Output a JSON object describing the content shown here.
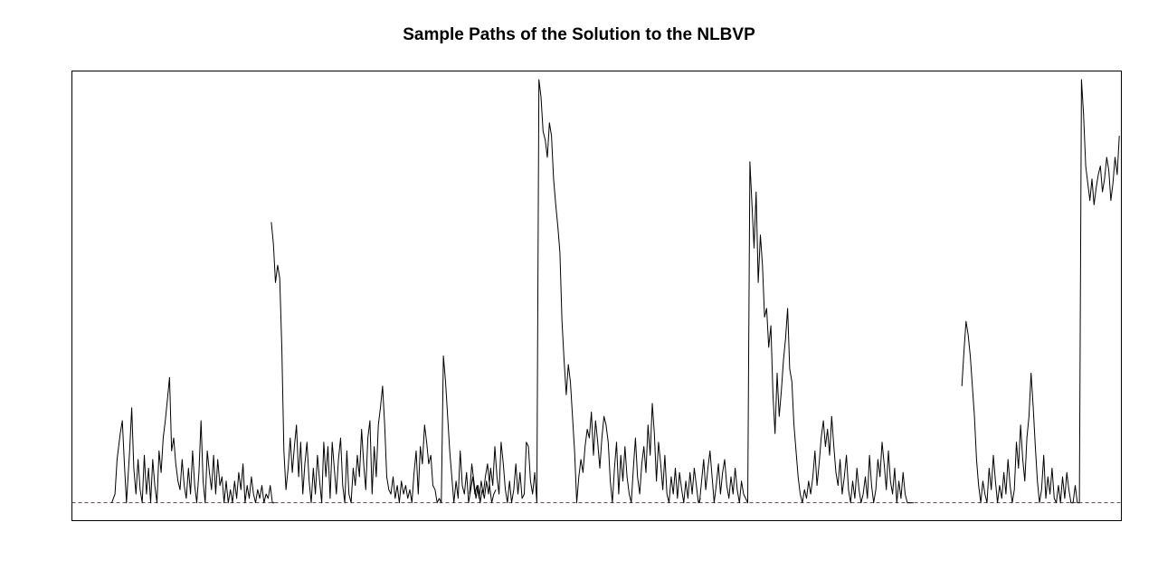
{
  "chart_data": {
    "type": "line",
    "title": "Sample Paths of the Solution to the NLBVP",
    "xlabel": "",
    "ylabel": "",
    "xlim": [
      0,
      1
    ],
    "ylim": [
      -0.0416,
      1.0
    ],
    "grid": false,
    "reference_line": {
      "y": 0,
      "color": "#b22222",
      "style": "dashed"
    },
    "line_color": "#000000",
    "series": [
      {
        "x": [
          0.038,
          0.041,
          0.043,
          0.046,
          0.048,
          0.05,
          0.052,
          0.055,
          0.057,
          0.059,
          0.061,
          0.063,
          0.065,
          0.067,
          0.069,
          0.071,
          0.073,
          0.075,
          0.077,
          0.079,
          0.081,
          0.083,
          0.085,
          0.087,
          0.089,
          0.091,
          0.093,
          0.095,
          0.097,
          0.099,
          0.101,
          0.103,
          0.105,
          0.107,
          0.109,
          0.111,
          0.113,
          0.115,
          0.117,
          0.119,
          0.121,
          0.123,
          0.125,
          0.127,
          0.129,
          0.131,
          0.133,
          0.135,
          0.137,
          0.139,
          0.141,
          0.143,
          0.145,
          0.147,
          0.149,
          0.151,
          0.153,
          0.155,
          0.157,
          0.159,
          0.161,
          0.163,
          0.165,
          0.167,
          0.169,
          0.171,
          0.173,
          0.175,
          0.177,
          0.179,
          0.181,
          0.183,
          0.185,
          0.187,
          0.189,
          0.191,
          0.193
        ],
        "y": [
          0.0,
          0.02,
          0.1,
          0.16,
          0.19,
          0.09,
          0.0,
          0.12,
          0.22,
          0.08,
          0.02,
          0.1,
          0.03,
          0.0,
          0.11,
          0.02,
          0.08,
          0.0,
          0.1,
          0.04,
          0.0,
          0.12,
          0.07,
          0.15,
          0.19,
          0.24,
          0.29,
          0.12,
          0.15,
          0.09,
          0.05,
          0.03,
          0.1,
          0.04,
          0.01,
          0.08,
          0.02,
          0.12,
          0.04,
          0.0,
          0.07,
          0.19,
          0.05,
          0.0,
          0.12,
          0.07,
          0.03,
          0.11,
          0.02,
          0.1,
          0.04,
          0.06,
          0.0,
          0.05,
          0.0,
          0.03,
          0.0,
          0.05,
          0.01,
          0.07,
          0.03,
          0.09,
          0.0,
          0.04,
          0.01,
          0.06,
          0.02,
          0.0,
          0.03,
          0.01,
          0.04,
          0.0,
          0.02,
          0.01,
          0.04,
          0.0,
          0.0
        ]
      },
      {
        "x": [
          0.19,
          0.192,
          0.194,
          0.196,
          0.198,
          0.2,
          0.202,
          0.204,
          0.206,
          0.208,
          0.21,
          0.212,
          0.214,
          0.216,
          0.218,
          0.22,
          0.222,
          0.224,
          0.226,
          0.228,
          0.23,
          0.232,
          0.234,
          0.236,
          0.238,
          0.24,
          0.242,
          0.244,
          0.246,
          0.248,
          0.25,
          0.252,
          0.254,
          0.256,
          0.258,
          0.26,
          0.262,
          0.264,
          0.266,
          0.268,
          0.27,
          0.272,
          0.274,
          0.276,
          0.278,
          0.28,
          0.282,
          0.284,
          0.286,
          0.288,
          0.29,
          0.292,
          0.294,
          0.296,
          0.298,
          0.3,
          0.302,
          0.304,
          0.306,
          0.308,
          0.31,
          0.312,
          0.314,
          0.316,
          0.318,
          0.32,
          0.322,
          0.324,
          0.326,
          0.328,
          0.33,
          0.332,
          0.334,
          0.336,
          0.338,
          0.34,
          0.342,
          0.344,
          0.346,
          0.348,
          0.35,
          0.352,
          0.354,
          0.356,
          0.358,
          0.36,
          0.362,
          0.364,
          0.366,
          0.368,
          0.37,
          0.372,
          0.374,
          0.376,
          0.378,
          0.38,
          0.382,
          0.384,
          0.386,
          0.388,
          0.39,
          0.392,
          0.394,
          0.396,
          0.398,
          0.4,
          0.402,
          0.404
        ],
        "y": [
          0.65,
          0.6,
          0.51,
          0.55,
          0.52,
          0.36,
          0.12,
          0.03,
          0.08,
          0.15,
          0.07,
          0.13,
          0.18,
          0.06,
          0.14,
          0.02,
          0.09,
          0.14,
          0.05,
          0.0,
          0.08,
          0.02,
          0.11,
          0.05,
          0.0,
          0.14,
          0.06,
          0.13,
          0.01,
          0.14,
          0.08,
          0.02,
          0.1,
          0.15,
          0.04,
          0.0,
          0.12,
          0.02,
          0.0,
          0.08,
          0.04,
          0.11,
          0.06,
          0.17,
          0.09,
          0.03,
          0.15,
          0.19,
          0.02,
          0.13,
          0.06,
          0.18,
          0.22,
          0.27,
          0.18,
          0.06,
          0.03,
          0.02,
          0.06,
          0.01,
          0.04,
          0.0,
          0.05,
          0.02,
          0.04,
          0.01,
          0.03,
          0.0,
          0.07,
          0.12,
          0.02,
          0.13,
          0.09,
          0.18,
          0.14,
          0.09,
          0.11,
          0.04,
          0.03,
          0.0,
          0.01,
          0.0,
          0.34,
          0.28,
          0.2,
          0.12,
          0.06,
          0.0,
          0.05,
          0.01,
          0.12,
          0.04,
          0.02,
          0.07,
          0.0,
          0.03,
          0.06,
          0.02,
          0.04,
          0.01,
          0.05,
          0.02,
          0.06,
          0.09,
          0.04,
          0.0,
          0.02,
          0.03
        ]
      },
      {
        "x": [
          0.379,
          0.381,
          0.383,
          0.385,
          0.387,
          0.389,
          0.391,
          0.393,
          0.395,
          0.397,
          0.399,
          0.401,
          0.403,
          0.405,
          0.407,
          0.409,
          0.411,
          0.413,
          0.415,
          0.417,
          0.419,
          0.421,
          0.423,
          0.425,
          0.427,
          0.429,
          0.431,
          0.433,
          0.435,
          0.437,
          0.439,
          0.441,
          0.443,
          0.445,
          0.447,
          0.449,
          0.451,
          0.453,
          0.455,
          0.457,
          0.459,
          0.461,
          0.463,
          0.465,
          0.467,
          0.469,
          0.471,
          0.473,
          0.475,
          0.477,
          0.479,
          0.481,
          0.483,
          0.485,
          0.487,
          0.489,
          0.491,
          0.493,
          0.495,
          0.497,
          0.499,
          0.501,
          0.503,
          0.505,
          0.507,
          0.509,
          0.511,
          0.513,
          0.515,
          0.517,
          0.519,
          0.521,
          0.523,
          0.525,
          0.527,
          0.529,
          0.531,
          0.533,
          0.535,
          0.537,
          0.539,
          0.541,
          0.543,
          0.545,
          0.547,
          0.549,
          0.551,
          0.553,
          0.555,
          0.557,
          0.559,
          0.561,
          0.563,
          0.565,
          0.567,
          0.569,
          0.571,
          0.573,
          0.575,
          0.577,
          0.579,
          0.581,
          0.583,
          0.585,
          0.587,
          0.589,
          0.591,
          0.593,
          0.595,
          0.597,
          0.599
        ],
        "y": [
          0.02,
          0.09,
          0.05,
          0.01,
          0.04,
          0.0,
          0.03,
          0.01,
          0.05,
          0.02,
          0.08,
          0.04,
          0.13,
          0.06,
          0.02,
          0.14,
          0.09,
          0.03,
          0.0,
          0.05,
          0.0,
          0.03,
          0.09,
          0.02,
          0.07,
          0.01,
          0.02,
          0.14,
          0.13,
          0.05,
          0.02,
          0.07,
          0.0,
          0.98,
          0.94,
          0.86,
          0.84,
          0.8,
          0.88,
          0.85,
          0.75,
          0.69,
          0.64,
          0.58,
          0.42,
          0.33,
          0.25,
          0.32,
          0.28,
          0.2,
          0.12,
          0.0,
          0.06,
          0.1,
          0.07,
          0.13,
          0.17,
          0.15,
          0.21,
          0.11,
          0.19,
          0.14,
          0.08,
          0.15,
          0.2,
          0.18,
          0.14,
          0.05,
          0.0,
          0.08,
          0.14,
          0.02,
          0.11,
          0.05,
          0.13,
          0.06,
          0.02,
          0.0,
          0.08,
          0.15,
          0.06,
          0.02,
          0.09,
          0.13,
          0.07,
          0.18,
          0.11,
          0.23,
          0.16,
          0.05,
          0.14,
          0.09,
          0.03,
          0.11,
          0.02,
          0.0,
          0.06,
          0.02,
          0.08,
          0.01,
          0.07,
          0.03,
          0.0,
          0.05,
          0.01,
          0.07,
          0.02,
          0.08,
          0.04,
          0.0,
          0.01
        ]
      },
      {
        "x": [
          0.598,
          0.6,
          0.602,
          0.604,
          0.606,
          0.608,
          0.61,
          0.612,
          0.614,
          0.616,
          0.618,
          0.62,
          0.622,
          0.624,
          0.626,
          0.628,
          0.63,
          0.632,
          0.634,
          0.636,
          0.638,
          0.64,
          0.642,
          0.644,
          0.646,
          0.648,
          0.65,
          0.652,
          0.654,
          0.656,
          0.658,
          0.66,
          0.662,
          0.664,
          0.666,
          0.668,
          0.67,
          0.672,
          0.674,
          0.676,
          0.678,
          0.68,
          0.682,
          0.684,
          0.686,
          0.688,
          0.69,
          0.692,
          0.694,
          0.696,
          0.698,
          0.7,
          0.702,
          0.704,
          0.706,
          0.708,
          0.71,
          0.712,
          0.714,
          0.716,
          0.718,
          0.72,
          0.722,
          0.724,
          0.726,
          0.728,
          0.73,
          0.732,
          0.734,
          0.736,
          0.738,
          0.74,
          0.742,
          0.744,
          0.746,
          0.748,
          0.75,
          0.752,
          0.754,
          0.756,
          0.758,
          0.76,
          0.762,
          0.764,
          0.766,
          0.768,
          0.77,
          0.772,
          0.774,
          0.776,
          0.778,
          0.78,
          0.782,
          0.784,
          0.786,
          0.788,
          0.79,
          0.792,
          0.794,
          0.796,
          0.798,
          0.8,
          0.802
        ],
        "y": [
          0.0,
          0.05,
          0.1,
          0.03,
          0.08,
          0.12,
          0.06,
          0.0,
          0.04,
          0.09,
          0.02,
          0.07,
          0.1,
          0.04,
          0.01,
          0.06,
          0.02,
          0.08,
          0.03,
          0.0,
          0.05,
          0.02,
          0.01,
          0.0,
          0.79,
          0.69,
          0.59,
          0.72,
          0.51,
          0.62,
          0.55,
          0.43,
          0.45,
          0.36,
          0.41,
          0.25,
          0.16,
          0.3,
          0.2,
          0.26,
          0.33,
          0.38,
          0.45,
          0.31,
          0.28,
          0.18,
          0.12,
          0.06,
          0.02,
          0.0,
          0.03,
          0.01,
          0.05,
          0.02,
          0.06,
          0.12,
          0.04,
          0.09,
          0.15,
          0.19,
          0.13,
          0.17,
          0.11,
          0.2,
          0.13,
          0.07,
          0.04,
          0.1,
          0.02,
          0.06,
          0.11,
          0.03,
          0.0,
          0.05,
          0.01,
          0.08,
          0.03,
          0.0,
          0.02,
          0.06,
          0.01,
          0.11,
          0.04,
          0.0,
          0.03,
          0.1,
          0.06,
          0.14,
          0.09,
          0.03,
          0.12,
          0.05,
          0.02,
          0.08,
          0.0,
          0.05,
          0.01,
          0.07,
          0.02,
          0.0,
          0.0,
          0.0,
          0.0
        ]
      },
      {
        "x": [
          0.848,
          0.85,
          0.852,
          0.854,
          0.856,
          0.858,
          0.86,
          0.862,
          0.864,
          0.866,
          0.868,
          0.87,
          0.872,
          0.874,
          0.876,
          0.878,
          0.88,
          0.882,
          0.884,
          0.886,
          0.888,
          0.89,
          0.892,
          0.894,
          0.896,
          0.898,
          0.9,
          0.902,
          0.904,
          0.906,
          0.908,
          0.91,
          0.912,
          0.914,
          0.916,
          0.918,
          0.92,
          0.922,
          0.924,
          0.926,
          0.928,
          0.93,
          0.932,
          0.934,
          0.936,
          0.938,
          0.94,
          0.942,
          0.944,
          0.946,
          0.948,
          0.95,
          0.952,
          0.954,
          0.956,
          0.958,
          0.96,
          0.962,
          0.964,
          0.966,
          0.968,
          0.97,
          0.972,
          0.974,
          0.976,
          0.978,
          0.98,
          0.982,
          0.984,
          0.986,
          0.988,
          0.99,
          0.992,
          0.994,
          0.996,
          0.998
        ],
        "y": [
          0.27,
          0.35,
          0.42,
          0.39,
          0.34,
          0.27,
          0.2,
          0.1,
          0.04,
          0.0,
          0.05,
          0.02,
          0.0,
          0.08,
          0.03,
          0.11,
          0.05,
          0.0,
          0.04,
          0.01,
          0.07,
          0.02,
          0.1,
          0.04,
          0.0,
          0.03,
          0.14,
          0.08,
          0.18,
          0.1,
          0.05,
          0.15,
          0.2,
          0.3,
          0.22,
          0.13,
          0.05,
          0.0,
          0.03,
          0.11,
          0.01,
          0.06,
          0.02,
          0.08,
          0.01,
          0.0,
          0.04,
          0.0,
          0.06,
          0.01,
          0.07,
          0.03,
          0.0,
          0.0,
          0.04,
          0.0,
          0.0,
          0.98,
          0.9,
          0.78,
          0.74,
          0.7,
          0.75,
          0.69,
          0.73,
          0.76,
          0.78,
          0.72,
          0.75,
          0.8,
          0.77,
          0.7,
          0.74,
          0.8,
          0.76,
          0.85
        ]
      }
    ]
  }
}
